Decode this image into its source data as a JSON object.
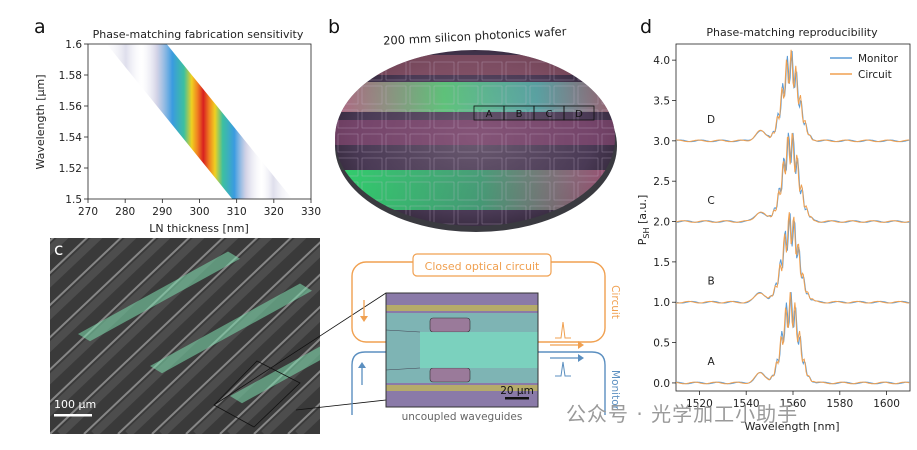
{
  "panels": {
    "a": {
      "letter": "a",
      "title": "Phase-matching fabrication sensitivity",
      "xlabel": "LN thickness [nm]",
      "ylabel": "Wavelength [μm]",
      "xticks": [
        "270",
        "280",
        "290",
        "300",
        "310",
        "320",
        "330"
      ],
      "yticks": [
        "1.5",
        "1.52",
        "1.54",
        "1.56",
        "1.58",
        "1.6"
      ]
    },
    "b": {
      "letter": "b",
      "title": "200 mm silicon photonics wafer",
      "dies": [
        "A",
        "B",
        "C",
        "D"
      ]
    },
    "c": {
      "letter": "c",
      "scalebar": "100 μm"
    },
    "diagram": {
      "closed_label": "Closed optical circuit",
      "circuit_label": "Circuit",
      "monitor_label": "Monitor",
      "uncoupled_label": "uncoupled waveguides",
      "scalebar": "20 μm",
      "colors": {
        "circuit": "#f0a050",
        "monitor": "#5b8fc0"
      }
    },
    "d": {
      "letter": "d"
    }
  },
  "chart_data": [
    {
      "type": "heatmap",
      "title": "Phase-matching fabrication sensitivity",
      "xlabel": "LN thickness [nm]",
      "ylabel": "Wavelength [μm]",
      "xlim": [
        270,
        330
      ],
      "ylim": [
        1.5,
        1.6
      ],
      "band": {
        "x_at_ymin": 318,
        "x_at_ymax": 282
      }
    },
    {
      "type": "line",
      "title": "Phase-matching reproducibility",
      "xlabel": "Wavelength [nm]",
      "ylabel": "P_SH [a.u.]",
      "xlim": [
        1510,
        1610
      ],
      "ylim": [
        -0.1,
        4.2
      ],
      "xticks": [
        1520,
        1540,
        1560,
        1580,
        1600
      ],
      "yticks": [
        "0.0",
        "0.5",
        "1.0",
        "1.5",
        "2.0",
        "2.5",
        "3.0",
        "3.5",
        "4.0"
      ],
      "legend": {
        "position": "top-right",
        "entries": [
          "Monitor",
          "Circuit"
        ]
      },
      "series_colors": {
        "Monitor": "#5b9bd5",
        "Circuit": "#f0a050"
      },
      "traces": [
        {
          "label": "A",
          "offset": 0.0,
          "peak": 1.0
        },
        {
          "label": "B",
          "offset": 1.0,
          "peak": 1.0
        },
        {
          "label": "C",
          "offset": 2.0,
          "peak": 1.0
        },
        {
          "label": "D",
          "offset": 3.0,
          "peak": 1.0
        }
      ],
      "peak_center": 1559,
      "peak_width": 5
    }
  ],
  "watermark": "公众号 · 光学加工小助手"
}
